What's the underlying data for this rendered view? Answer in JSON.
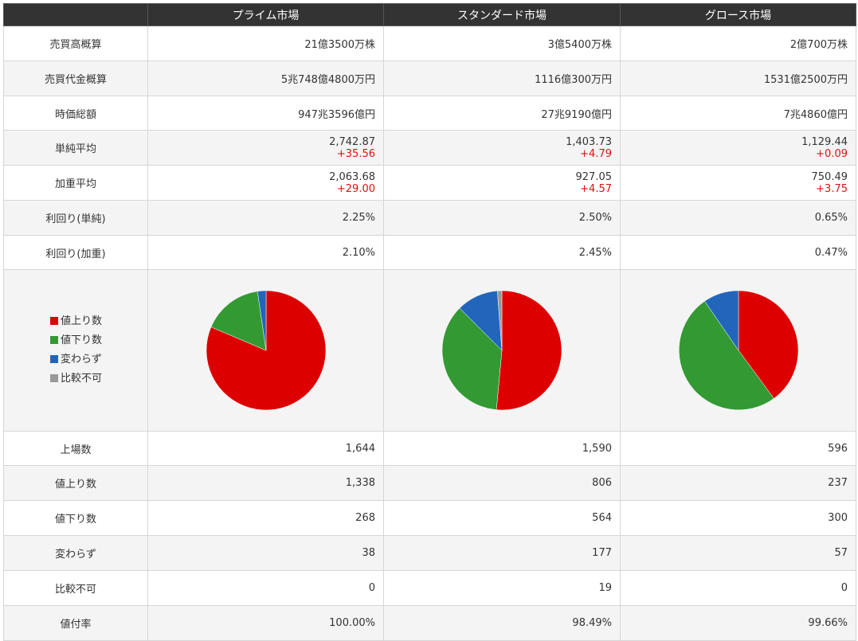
{
  "headers": [
    "",
    "プライム市場",
    "スタンダード市場",
    "グロース市場"
  ],
  "rows": [
    {
      "label": "売買高概算",
      "values": [
        "21億3500万株",
        "3億5400万株",
        "2億700万株"
      ]
    },
    {
      "label": "売買代金概算",
      "values": [
        "5兆748億4800万円",
        "1116億300万円",
        "1531億2500万円"
      ]
    },
    {
      "label": "時価総額",
      "values": [
        "947兆3596億円",
        "27兆9190億円",
        "7兆4860億円"
      ]
    },
    {
      "label": "単純平均",
      "values": [
        "2,742.87",
        "1,403.73",
        "1,129.44"
      ],
      "changes": [
        "+35.56",
        "+4.79",
        "+0.09"
      ]
    },
    {
      "label": "加重平均",
      "values": [
        "2,063.68",
        "927.05",
        "750.49"
      ],
      "changes": [
        "+29.00",
        "+4.57",
        "+3.75"
      ]
    },
    {
      "label": "利回り(単純)",
      "values": [
        "2.25%",
        "2.50%",
        "0.65%"
      ]
    },
    {
      "label": "利回り(加重)",
      "values": [
        "2.10%",
        "2.45%",
        "0.47%"
      ]
    }
  ],
  "legend": [
    {
      "label": "値上り数",
      "color": "#dd0000"
    },
    {
      "label": "値下り数",
      "color": "#339933"
    },
    {
      "label": "変わらず",
      "color": "#2266bb"
    },
    {
      "label": "比較不可",
      "color": "#999999"
    }
  ],
  "rows2": [
    {
      "label": "上場数",
      "values": [
        "1,644",
        "1,590",
        "596"
      ]
    },
    {
      "label": "値上り数",
      "values": [
        "1,338",
        "806",
        "237"
      ]
    },
    {
      "label": "値下り数",
      "values": [
        "268",
        "564",
        "300"
      ]
    },
    {
      "label": "変わらず",
      "values": [
        "38",
        "177",
        "57"
      ]
    },
    {
      "label": "比較不可",
      "values": [
        "0",
        "19",
        "0"
      ]
    },
    {
      "label": "値付率",
      "values": [
        "100.00%",
        "98.49%",
        "99.66%"
      ]
    }
  ],
  "chart_data": [
    {
      "type": "pie",
      "categories": [
        "値上り数",
        "値下り数",
        "変わらず",
        "比較不可"
      ],
      "values": [
        1338,
        268,
        38,
        0
      ]
    },
    {
      "type": "pie",
      "categories": [
        "値上り数",
        "値下り数",
        "変わらず",
        "比較不可"
      ],
      "values": [
        806,
        564,
        177,
        19
      ]
    },
    {
      "type": "pie",
      "categories": [
        "値上り数",
        "値下り数",
        "変わらず",
        "比較不可"
      ],
      "values": [
        237,
        300,
        57,
        0
      ]
    }
  ]
}
